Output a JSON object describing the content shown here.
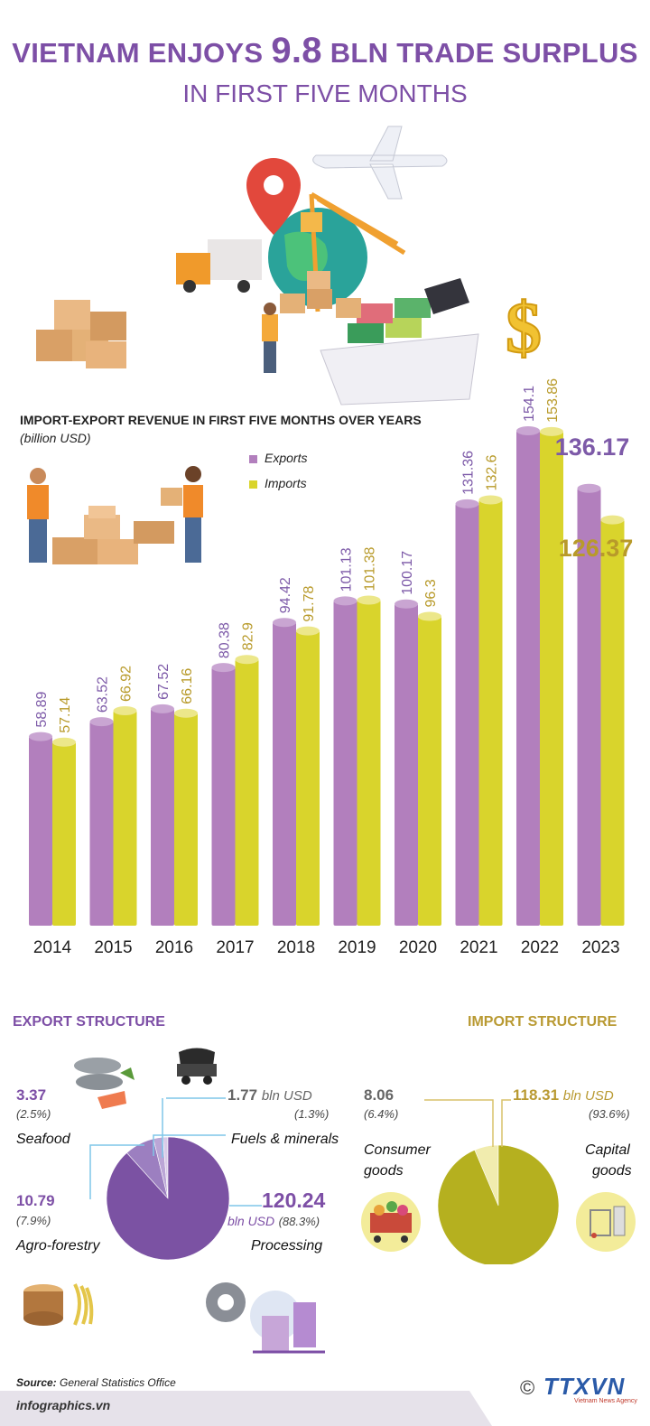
{
  "header": {
    "title_part1": "VIETNAM ENJOYS",
    "title_number": "9.8",
    "title_part2": "BLN TRADE SURPLUS",
    "subtitle": "IN FIRST FIVE MONTHS"
  },
  "colors": {
    "purple": "#7d4fa6",
    "export_bar": "#b27fbd",
    "import_bar": "#d9d42c",
    "export_label": "#7d5aa8",
    "import_label": "#b89a2a",
    "export_pie": "#7b52a3",
    "import_pie": "#b5b01f",
    "import_title": "#b99a33"
  },
  "chart_data": {
    "type": "bar",
    "title": "IMPORT-EXPORT REVENUE IN FIRST FIVE MONTHS OVER YEARS",
    "unit_label": "(billion  USD)",
    "categories": [
      "2014",
      "2015",
      "2016",
      "2017",
      "2018",
      "2019",
      "2020",
      "2021",
      "2022",
      "2023"
    ],
    "series": [
      {
        "name": "Exports",
        "values": [
          58.89,
          63.52,
          67.52,
          80.38,
          94.42,
          101.13,
          100.17,
          131.36,
          154.1,
          136.17
        ]
      },
      {
        "name": "Imports",
        "values": [
          57.14,
          66.92,
          66.16,
          82.9,
          91.78,
          101.38,
          96.3,
          132.6,
          153.86,
          126.37
        ]
      }
    ],
    "value_labels": {
      "Exports": [
        "58.89",
        "63.52",
        "67.52",
        "80.38",
        "94.42",
        "101.13",
        "100.17",
        "131.36",
        "154.1",
        "136.17"
      ],
      "Imports": [
        "57.14",
        "66.92",
        "66.16",
        "82.9",
        "91.78",
        "101.38",
        "96.3",
        "132.6",
        "153.86",
        "126.37"
      ]
    },
    "ylim": [
      0,
      154.1
    ],
    "legend": "top-left",
    "grid": false
  },
  "export_structure": {
    "title": "EXPORT STRUCTURE",
    "slices": [
      {
        "name": "Seafood",
        "value": "3.37",
        "pct": "(2.5%)",
        "share": 2.5
      },
      {
        "name": "Fuels & minerals",
        "value": "1.77",
        "unit": "bln USD",
        "pct": "(1.3%)",
        "share": 1.3
      },
      {
        "name": "Agro-forestry",
        "value": "10.79",
        "pct": "(7.9%)",
        "share": 7.9
      },
      {
        "name": "Processing",
        "value": "120.24",
        "unit": "bln USD",
        "pct": "(88.3%)",
        "share": 88.3
      }
    ]
  },
  "import_structure": {
    "title": "IMPORT STRUCTURE",
    "consumer": {
      "value": "8.06",
      "pct": "(6.4%)",
      "name_line1": "Consumer",
      "name_line2": "goods",
      "share": 6.4
    },
    "capital": {
      "value": "118.31",
      "unit": "bln USD",
      "pct": "(93.6%)",
      "name_line1": "Capital",
      "name_line2": "goods",
      "share": 93.6
    }
  },
  "footer": {
    "source_label": "Source:",
    "source_text": "General Statistics Office",
    "site": "infographics.vn",
    "logo_text": "TTXVN",
    "logo_sub": "Vietnam News Agency",
    "copyright": "©"
  }
}
